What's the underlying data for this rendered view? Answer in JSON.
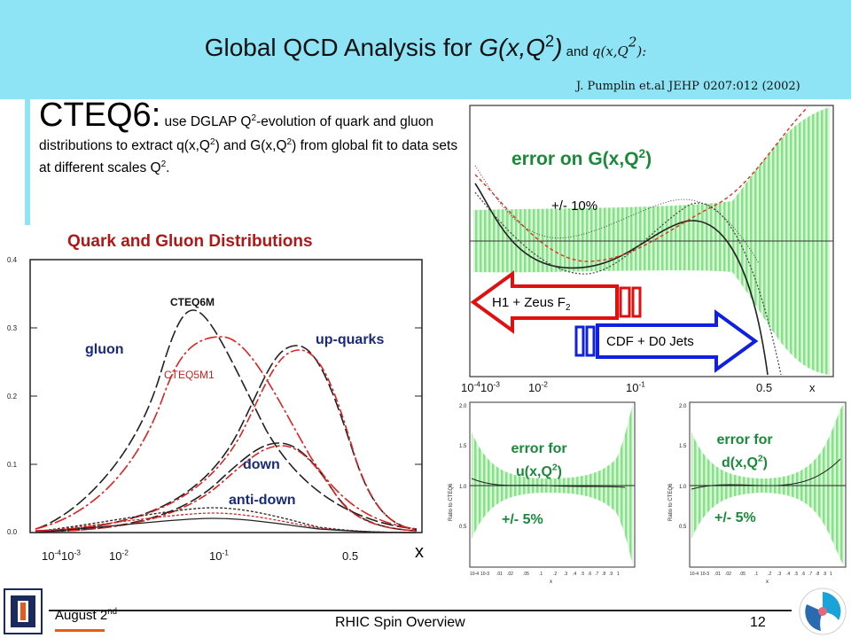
{
  "header": {
    "title_main": "Global QCD Analysis for ",
    "title_G": "G(x,Q",
    "title_G_sup": "2",
    "title_G_close": ")",
    "title_and": " and ",
    "title_q": "q(x,Q",
    "title_q_sup": "2",
    "title_q_close": "):",
    "citation": "J. Pumplin et.al JEHP 0207:012 (2002)"
  },
  "intro": {
    "lead": "CTEQ6:",
    "t1": " use DGLAP Q",
    "t1_sup": "2",
    "t2": "-evolution  of quark and gluon distributions to extract q(x,Q",
    "t2_sup": "2",
    "t3": ") and G(x,Q",
    "t3_sup": "2",
    "t4": ") from global fit to data sets at different scales Q",
    "t4_sup": "2",
    "t5": "."
  },
  "left_plot": {
    "title": "Quark and Gluon Distributions",
    "labels": {
      "cteq6m": "CTEQ6M",
      "cteq5m1": "CTEQ5M1",
      "gluon": "gluon",
      "up": "up-quarks",
      "down": "down",
      "antidown": "anti-down"
    },
    "y_ticks": [
      "0.4",
      "0.3",
      "0.2",
      "0.1",
      "0.0"
    ],
    "x_ticks": {
      "a": "10",
      "a_sup": "-4",
      "b": "10",
      "b_sup": "-3",
      "c": "10",
      "c_sup": "-2",
      "d": "10",
      "d_sup": "-1",
      "e": "0.5",
      "axis": "x"
    }
  },
  "right_plot": {
    "title_a": "error on G(x,Q",
    "title_sup": "2",
    "title_b": ")",
    "band": "+/- 10%",
    "h1_a": "H1 + Zeus F",
    "h1_sub": "2",
    "cdf": "CDF + D0 Jets",
    "x_ticks": {
      "a": "10",
      "a_sup": "-4",
      "b": "10",
      "b_sup": "-3",
      "c": "10",
      "c_sup": "-2",
      "d": "10",
      "d_sup": "-1",
      "e": "0.5",
      "axis": "x"
    }
  },
  "small_plots": [
    {
      "label1": "error for",
      "label2a": "u(x,Q",
      "label2_sup": "2",
      "label2b": ")",
      "band": "+/- 5%",
      "yaxis": "Ratio to CTEQ6",
      "xaxis": "x",
      "y_ticks": [
        "2.0",
        "1.5",
        "1.0",
        "0.5"
      ],
      "x_tick_labels": [
        "10-4",
        "10-3",
        ".01",
        ".02",
        ".05",
        ".1",
        ".2",
        ".3",
        ".4",
        ".5",
        ".6",
        ".7",
        ".8",
        ".9",
        "1"
      ]
    },
    {
      "label1": "error for",
      "label2a": "d(x,Q",
      "label2_sup": "2",
      "label2b": ")",
      "band": "+/- 5%",
      "yaxis": "Ratio to CTEQ6",
      "xaxis": "x",
      "y_ticks": [
        "2.0",
        "1.5",
        "1.0",
        "0.5"
      ],
      "x_tick_labels": [
        "10-4",
        "10-3",
        ".01",
        ".02",
        ".05",
        ".1",
        ".2",
        ".3",
        ".4",
        ".5",
        ".6",
        ".7",
        ".8",
        ".9",
        "1"
      ]
    }
  ],
  "footer": {
    "date": "August 2",
    "date_sup": "nd",
    "center": "RHIC Spin Overview",
    "page": "12"
  },
  "colors": {
    "header_bg": "#8ee3f5",
    "band_green": "#9be89b",
    "arrow_red": "#e01010",
    "arrow_blue": "#1020e0"
  }
}
